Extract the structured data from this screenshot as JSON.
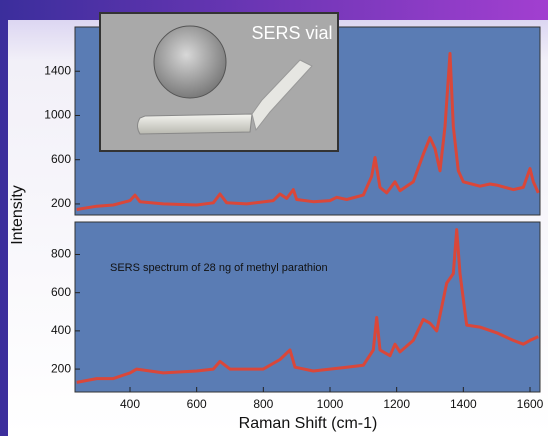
{
  "chart_data": [
    {
      "type": "line",
      "photo_caption": "SERS vial",
      "color": "#d9473a",
      "x": [
        240,
        300,
        350,
        400,
        415,
        430,
        500,
        600,
        650,
        670,
        690,
        750,
        830,
        850,
        870,
        890,
        900,
        950,
        1000,
        1020,
        1050,
        1100,
        1125,
        1135,
        1150,
        1170,
        1195,
        1210,
        1250,
        1280,
        1300,
        1315,
        1330,
        1345,
        1360,
        1370,
        1385,
        1400,
        1450,
        1480,
        1500,
        1550,
        1580,
        1600,
        1610,
        1625
      ],
      "values": [
        150,
        180,
        190,
        230,
        280,
        220,
        200,
        190,
        210,
        290,
        210,
        200,
        230,
        290,
        250,
        330,
        240,
        220,
        230,
        260,
        240,
        280,
        450,
        620,
        350,
        300,
        400,
        320,
        400,
        650,
        800,
        700,
        500,
        900,
        1560,
        900,
        500,
        400,
        360,
        380,
        370,
        330,
        350,
        520,
        400,
        300
      ],
      "xlim": [
        235,
        1630
      ],
      "ylim": [
        100,
        1800
      ],
      "yticks": [
        200,
        600,
        1000,
        1400
      ]
    },
    {
      "type": "line",
      "annotation": "SERS spectrum of 28 ng of methyl parathion",
      "color": "#d9473a",
      "x": [
        240,
        300,
        350,
        400,
        420,
        500,
        600,
        650,
        670,
        700,
        800,
        850,
        880,
        895,
        950,
        1000,
        1050,
        1100,
        1130,
        1140,
        1150,
        1180,
        1195,
        1210,
        1250,
        1280,
        1300,
        1320,
        1350,
        1370,
        1380,
        1390,
        1410,
        1450,
        1500,
        1550,
        1580,
        1600,
        1625
      ],
      "values": [
        130,
        150,
        150,
        180,
        200,
        180,
        190,
        200,
        240,
        200,
        200,
        250,
        300,
        210,
        190,
        200,
        210,
        220,
        300,
        470,
        300,
        270,
        330,
        290,
        350,
        460,
        440,
        400,
        650,
        700,
        930,
        700,
        430,
        420,
        390,
        350,
        330,
        350,
        370
      ],
      "xlim": [
        235,
        1630
      ],
      "ylim": [
        80,
        970
      ],
      "yticks": [
        200,
        400,
        600,
        800
      ],
      "xticks": [
        400,
        600,
        800,
        1000,
        1200,
        1400,
        1600
      ],
      "x_label": "Raman Shift (cm-1)"
    }
  ],
  "y_label": "Intensity"
}
